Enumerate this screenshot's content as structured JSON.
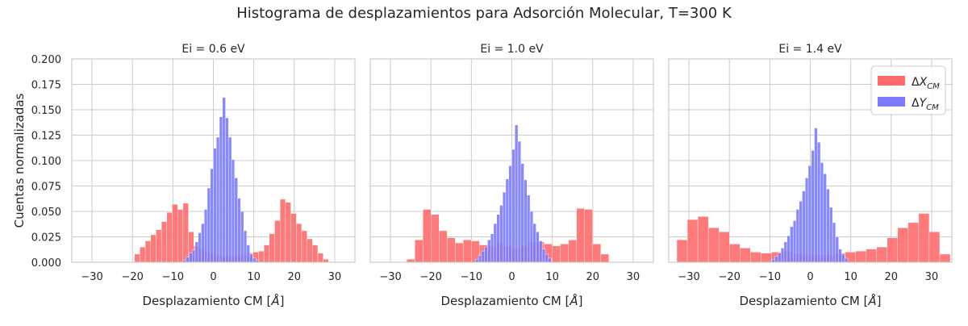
{
  "figure": {
    "title": "Histograma de desplazamientos para Adsorción Molecular, T=300 K",
    "ylabel": "Cuentas normalizadas"
  },
  "legend": {
    "placement": "top-right of third panel",
    "items": [
      {
        "label": "ΔX",
        "sub": "CM",
        "color": "#ff6b6b"
      },
      {
        "label": "ΔY",
        "sub": "CM",
        "color": "#7b7bff"
      }
    ]
  },
  "colors": {
    "x_series": "#ff6b6b",
    "y_series": "#7b7bff",
    "overlap": "#9b3fb5",
    "grid": "#cccccc",
    "axes_edge": "#cccccc"
  },
  "chart_data": [
    {
      "type": "bar",
      "title": "Ei = 0.6 eV",
      "xlabel": "Desplazamiento CM [Å]",
      "ylabel": "Cuentas normalizadas",
      "xlim": [
        -35,
        35
      ],
      "ylim": [
        0,
        0.2
      ],
      "xticks": [
        -30,
        -20,
        -10,
        0,
        10,
        20,
        30
      ],
      "yticks": [
        0,
        0.025,
        0.05,
        0.075,
        0.1,
        0.125,
        0.15,
        0.175,
        0.2
      ],
      "ytick_labels": [
        "0.000",
        "0.025",
        "0.050",
        "0.075",
        "0.100",
        "0.125",
        "0.150",
        "0.175",
        "0.200"
      ],
      "grid": true,
      "series": [
        {
          "name": "ΔX",
          "bin_start": -19.5,
          "bin_width": 1.333,
          "values": [
            0.008,
            0.015,
            0.021,
            0.027,
            0.032,
            0.04,
            0.049,
            0.057,
            0.052,
            0.058,
            0.03,
            0.016,
            0.013,
            0.01,
            0.009,
            0.007,
            0.006,
            0.006,
            0.006,
            0.007,
            0.008,
            0.009,
            0.01,
            0.011,
            0.017,
            0.028,
            0.041,
            0.062,
            0.059,
            0.048,
            0.038,
            0.031,
            0.023,
            0.017,
            0.009,
            0.003
          ]
        },
        {
          "name": "ΔY",
          "bin_start": -7.5,
          "bin_width": 0.75,
          "values": [
            0.002,
            0.005,
            0.009,
            0.012,
            0.02,
            0.029,
            0.038,
            0.052,
            0.073,
            0.092,
            0.112,
            0.123,
            0.143,
            0.162,
            0.142,
            0.123,
            0.101,
            0.083,
            0.063,
            0.05,
            0.031,
            0.017,
            0.008,
            0.004,
            0.002
          ]
        }
      ]
    },
    {
      "type": "bar",
      "title": "Ei = 1.0 eV",
      "xlabel": "Desplazamiento CM [Å]",
      "xlim": [
        -35,
        35
      ],
      "ylim": [
        0,
        0.2
      ],
      "xticks": [
        -30,
        -20,
        -10,
        0,
        10,
        20,
        30
      ],
      "grid": true,
      "series": [
        {
          "name": "ΔX",
          "bin_start": -26,
          "bin_width": 2.0,
          "values": [
            0.003,
            0.022,
            0.052,
            0.047,
            0.031,
            0.024,
            0.019,
            0.022,
            0.021,
            0.017,
            0.016,
            0.019,
            0.016,
            0.014,
            0.016,
            0.02,
            0.02,
            0.018,
            0.016,
            0.018,
            0.022,
            0.053,
            0.052,
            0.018,
            0.008
          ]
        },
        {
          "name": "ΔY",
          "bin_start": -9,
          "bin_width": 0.75,
          "values": [
            0.003,
            0.007,
            0.011,
            0.015,
            0.022,
            0.028,
            0.038,
            0.047,
            0.056,
            0.069,
            0.082,
            0.095,
            0.111,
            0.135,
            0.119,
            0.097,
            0.081,
            0.066,
            0.05,
            0.038,
            0.03,
            0.021,
            0.013,
            0.008,
            0.004
          ]
        }
      ]
    },
    {
      "type": "bar",
      "title": "Ei = 1.4 eV",
      "xlabel": "Desplazamiento CM [Å]",
      "xlim": [
        -35,
        35
      ],
      "ylim": [
        0,
        0.2
      ],
      "xticks": [
        -30,
        -20,
        -10,
        0,
        10,
        20,
        30
      ],
      "grid": true,
      "series": [
        {
          "name": "ΔX",
          "bin_start": -33,
          "bin_width": 2.6,
          "values": [
            0.022,
            0.042,
            0.045,
            0.034,
            0.03,
            0.018,
            0.014,
            0.01,
            0.009,
            0.01,
            0.011,
            0.008,
            0.007,
            0.007,
            0.007,
            0.009,
            0.01,
            0.011,
            0.013,
            0.015,
            0.024,
            0.034,
            0.039,
            0.048,
            0.03,
            0.008
          ]
        },
        {
          "name": "ΔY",
          "bin_start": -9.5,
          "bin_width": 0.75,
          "values": [
            0.003,
            0.006,
            0.009,
            0.014,
            0.02,
            0.026,
            0.035,
            0.041,
            0.052,
            0.06,
            0.07,
            0.083,
            0.095,
            0.11,
            0.132,
            0.118,
            0.098,
            0.087,
            0.072,
            0.054,
            0.039,
            0.025,
            0.013,
            0.008,
            0.004
          ]
        }
      ]
    }
  ]
}
